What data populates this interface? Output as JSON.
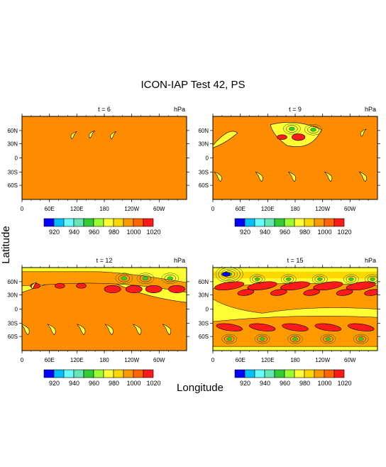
{
  "figure": {
    "title": "ICON-IAP Test 42, PS",
    "ylabel": "Latitude",
    "xlabel": "Longitude"
  },
  "palette": {
    "background_field": "#ff8c00",
    "contour_line": "#000000",
    "colorbar_colors": [
      "#0000ff",
      "#00bfff",
      "#66ffff",
      "#66e6b3",
      "#33cc33",
      "#99ff33",
      "#ffff33",
      "#ffd700",
      "#ff9900",
      "#ff6600",
      "#ff1a1a"
    ]
  },
  "chart_data": [
    {
      "type": "heatmap",
      "title": "t = 6",
      "units": "hPa",
      "x_ticks": [
        "0",
        "60E",
        "120E",
        "180",
        "120W",
        "60W"
      ],
      "y_ticks": [
        "60N",
        "30N",
        "0",
        "30S",
        "60S"
      ],
      "colorbar": {
        "labels": [
          "920",
          "940",
          "960",
          "980",
          "1000",
          "1020"
        ],
        "levels": [
          910,
          920,
          930,
          940,
          950,
          960,
          970,
          980,
          990,
          1000,
          1010,
          1020,
          1030
        ]
      }
    },
    {
      "type": "heatmap",
      "title": "t = 9",
      "units": "hPa",
      "x_ticks": [
        "0",
        "60E",
        "120E",
        "180",
        "120W",
        "60W"
      ],
      "y_ticks": [
        "60N",
        "30N",
        "0",
        "30S",
        "60S"
      ],
      "colorbar": {
        "labels": [
          "920",
          "940",
          "960",
          "980",
          "1000",
          "1020"
        ],
        "levels": [
          910,
          920,
          930,
          940,
          950,
          960,
          970,
          980,
          990,
          1000,
          1010,
          1020,
          1030
        ]
      }
    },
    {
      "type": "heatmap",
      "title": "t = 12",
      "units": "hPa",
      "x_ticks": [
        "0",
        "60E",
        "120E",
        "180",
        "120W",
        "60W"
      ],
      "y_ticks": [
        "60N",
        "30N",
        "0",
        "30S",
        "60S"
      ],
      "colorbar": {
        "labels": [
          "920",
          "940",
          "960",
          "980",
          "1000",
          "1020"
        ],
        "levels": [
          910,
          920,
          930,
          940,
          950,
          960,
          970,
          980,
          990,
          1000,
          1010,
          1020,
          1030
        ]
      }
    },
    {
      "type": "heatmap",
      "title": "t = 15",
      "units": "hPa",
      "x_ticks": [
        "0",
        "60E",
        "120E",
        "180",
        "120W",
        "60W"
      ],
      "y_ticks": [
        "60N",
        "30N",
        "0",
        "30S",
        "60S"
      ],
      "colorbar": {
        "labels": [
          "920",
          "940",
          "960",
          "980",
          "1000",
          "1020"
        ],
        "levels": [
          910,
          920,
          930,
          940,
          950,
          960,
          970,
          980,
          990,
          1000,
          1010,
          1020,
          1030
        ]
      }
    }
  ]
}
